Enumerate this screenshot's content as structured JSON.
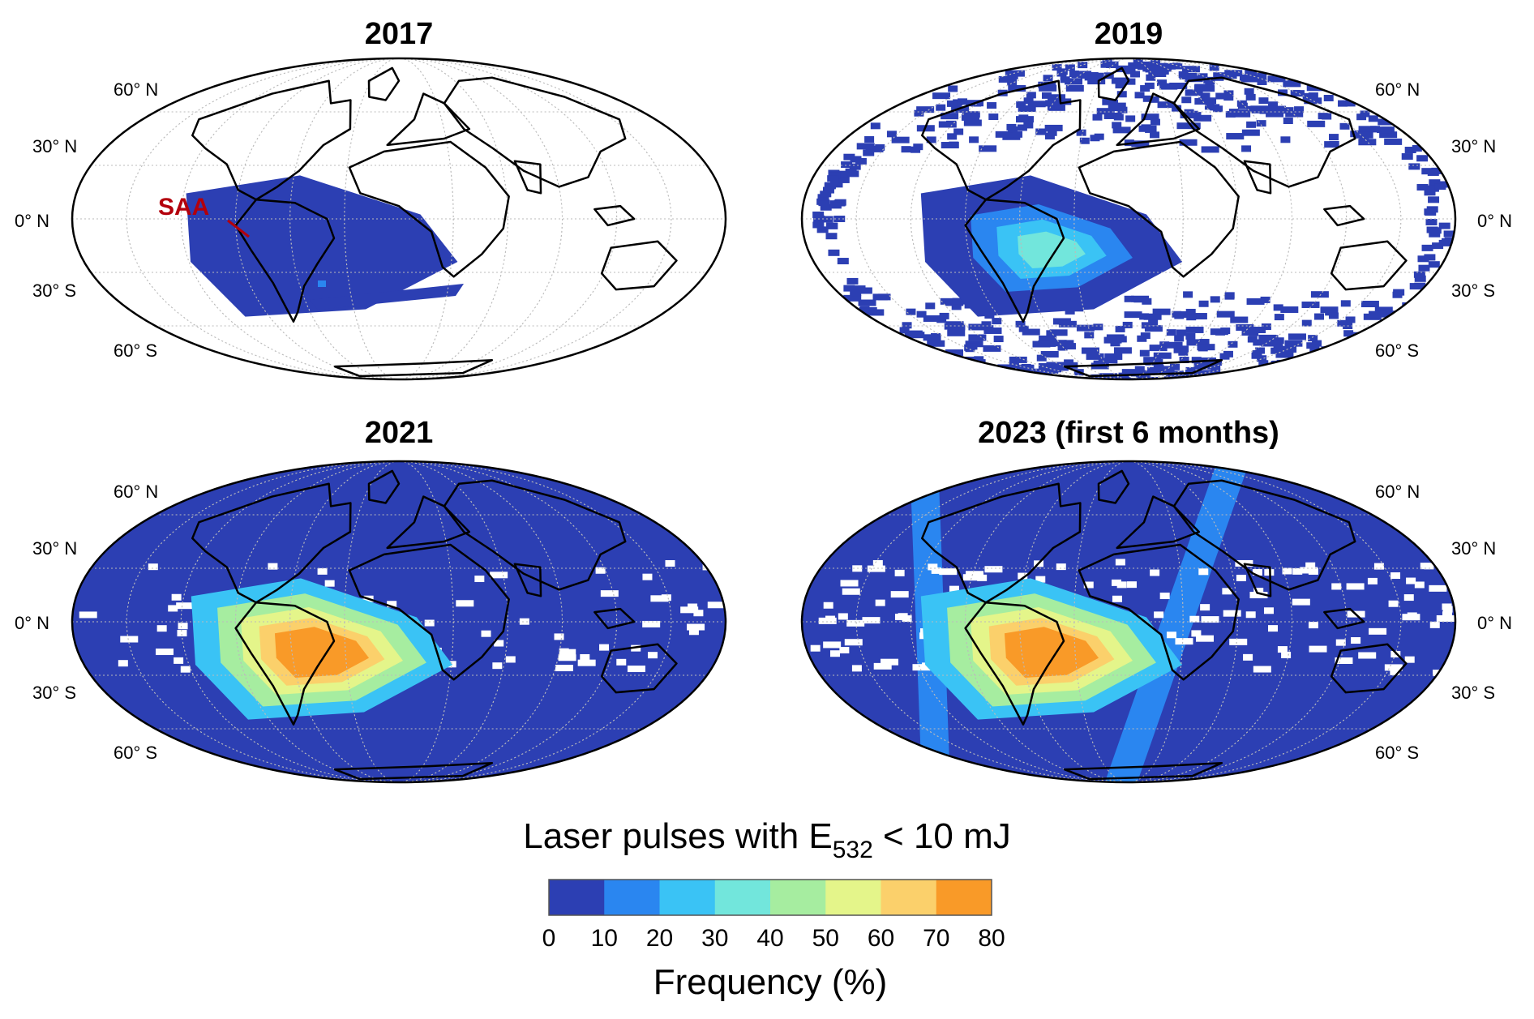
{
  "panels": [
    {
      "title": "2017",
      "pattern": "sparse"
    },
    {
      "title": "2019",
      "pattern": "moderate"
    },
    {
      "title": "2021",
      "pattern": "full"
    },
    {
      "title": "2023 (first 6 months)",
      "pattern": "full-band"
    }
  ],
  "lat_labels": {
    "n60": "60° N",
    "n30": "30° N",
    "eq": "0° N",
    "s30": "30° S",
    "s60": "60° S"
  },
  "annotation": {
    "text": "SAA"
  },
  "colorbar": {
    "title_prefix": "Laser pulses with E",
    "title_sub": "532",
    "title_suffix": " < 10 mJ",
    "label": "Frequency (%)",
    "ticks": [
      "0",
      "10",
      "20",
      "30",
      "40",
      "50",
      "60",
      "70",
      "80"
    ],
    "colors": [
      "#2c3fb3",
      "#2a86f0",
      "#3ac3f5",
      "#72e6dc",
      "#a6eda0",
      "#e4f58a",
      "#fbd06b",
      "#f99a28"
    ]
  }
}
